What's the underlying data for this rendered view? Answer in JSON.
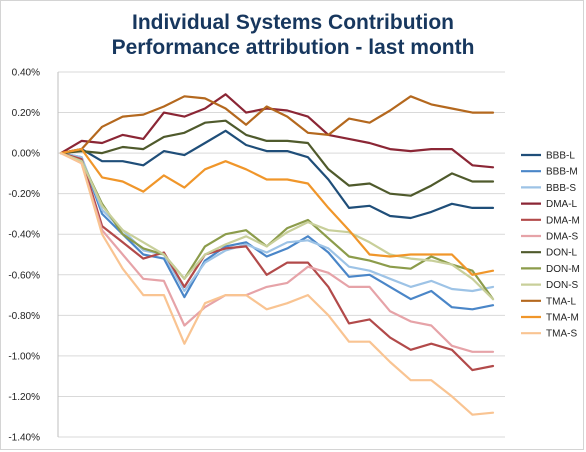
{
  "chart_data": {
    "type": "line",
    "title": "Individual Systems Contribution",
    "subtitle": "Performance attribution - last month",
    "xlabel": "",
    "ylabel": "",
    "ylim": [
      -1.4,
      0.4
    ],
    "yticks": [
      "0.40%",
      "0.20%",
      "0.00%",
      "-0.20%",
      "-0.40%",
      "-0.60%",
      "-0.80%",
      "-1.00%",
      "-1.20%",
      "-1.40%"
    ],
    "ytick_values": [
      0.4,
      0.2,
      0.0,
      -0.2,
      -0.4,
      -0.6,
      -0.8,
      -1.0,
      -1.2,
      -1.4
    ],
    "grid": "horizontal",
    "legend_position": "right",
    "series": [
      {
        "name": "BBB-L",
        "color": "#1f4e79",
        "values": [
          0.0,
          0.02,
          -0.04,
          -0.04,
          -0.06,
          0.01,
          -0.01,
          0.05,
          0.11,
          0.04,
          0.01,
          0.01,
          -0.02,
          -0.13,
          -0.27,
          -0.26,
          -0.31,
          -0.32,
          -0.29,
          -0.25,
          -0.27,
          -0.27
        ]
      },
      {
        "name": "BBB-M",
        "color": "#4a86c8",
        "values": [
          0.0,
          -0.02,
          -0.3,
          -0.4,
          -0.5,
          -0.52,
          -0.71,
          -0.53,
          -0.46,
          -0.44,
          -0.51,
          -0.47,
          -0.41,
          -0.49,
          -0.61,
          -0.6,
          -0.66,
          -0.72,
          -0.68,
          -0.76,
          -0.77,
          -0.75
        ]
      },
      {
        "name": "BBB-S",
        "color": "#9dc3e6",
        "values": [
          0.0,
          -0.02,
          -0.28,
          -0.38,
          -0.48,
          -0.5,
          -0.68,
          -0.54,
          -0.48,
          -0.45,
          -0.49,
          -0.44,
          -0.43,
          -0.47,
          -0.56,
          -0.58,
          -0.62,
          -0.66,
          -0.63,
          -0.67,
          -0.68,
          -0.66
        ]
      },
      {
        "name": "DMA-L",
        "color": "#8b2635",
        "values": [
          0.0,
          0.06,
          0.05,
          0.09,
          0.07,
          0.2,
          0.18,
          0.22,
          0.29,
          0.2,
          0.22,
          0.21,
          0.18,
          0.09,
          0.07,
          0.05,
          0.02,
          0.01,
          0.02,
          0.02,
          -0.06,
          -0.07
        ]
      },
      {
        "name": "DMA-M",
        "color": "#b24a4a",
        "values": [
          0.0,
          -0.03,
          -0.36,
          -0.44,
          -0.52,
          -0.49,
          -0.66,
          -0.5,
          -0.47,
          -0.46,
          -0.6,
          -0.54,
          -0.54,
          -0.66,
          -0.84,
          -0.82,
          -0.91,
          -0.97,
          -0.94,
          -0.97,
          -1.07,
          -1.05
        ]
      },
      {
        "name": "DMA-S",
        "color": "#e6a3a8",
        "values": [
          0.0,
          -0.05,
          -0.38,
          -0.5,
          -0.62,
          -0.63,
          -0.85,
          -0.76,
          -0.7,
          -0.7,
          -0.66,
          -0.64,
          -0.56,
          -0.59,
          -0.66,
          -0.66,
          -0.78,
          -0.83,
          -0.85,
          -0.95,
          -0.98,
          -0.98
        ]
      },
      {
        "name": "DON-L",
        "color": "#4f5a2c",
        "values": [
          0.0,
          0.01,
          0.0,
          0.03,
          0.02,
          0.08,
          0.1,
          0.15,
          0.16,
          0.09,
          0.06,
          0.06,
          0.05,
          -0.08,
          -0.16,
          -0.15,
          -0.2,
          -0.21,
          -0.16,
          -0.1,
          -0.14,
          -0.14
        ]
      },
      {
        "name": "DON-M",
        "color": "#8c9c4b",
        "values": [
          0.0,
          -0.04,
          -0.25,
          -0.4,
          -0.47,
          -0.5,
          -0.62,
          -0.46,
          -0.4,
          -0.38,
          -0.46,
          -0.37,
          -0.33,
          -0.42,
          -0.51,
          -0.53,
          -0.56,
          -0.57,
          -0.51,
          -0.55,
          -0.58,
          -0.72
        ]
      },
      {
        "name": "DON-S",
        "color": "#c8cf9a",
        "values": [
          0.0,
          -0.04,
          -0.26,
          -0.38,
          -0.44,
          -0.5,
          -0.62,
          -0.5,
          -0.45,
          -0.41,
          -0.46,
          -0.39,
          -0.34,
          -0.38,
          -0.39,
          -0.44,
          -0.5,
          -0.52,
          -0.53,
          -0.55,
          -0.62,
          -0.72
        ]
      },
      {
        "name": "TMA-L",
        "color": "#b4681e",
        "values": [
          0.0,
          0.02,
          0.13,
          0.18,
          0.19,
          0.23,
          0.28,
          0.27,
          0.22,
          0.14,
          0.23,
          0.18,
          0.1,
          0.09,
          0.17,
          0.15,
          0.21,
          0.28,
          0.24,
          0.22,
          0.2,
          0.2
        ]
      },
      {
        "name": "TMA-M",
        "color": "#f0962a",
        "values": [
          0.0,
          0.02,
          -0.12,
          -0.14,
          -0.19,
          -0.11,
          -0.17,
          -0.08,
          -0.04,
          -0.08,
          -0.13,
          -0.13,
          -0.15,
          -0.27,
          -0.38,
          -0.5,
          -0.51,
          -0.5,
          -0.5,
          -0.5,
          -0.6,
          -0.58
        ]
      },
      {
        "name": "TMA-S",
        "color": "#f9c492",
        "values": [
          0.0,
          -0.05,
          -0.4,
          -0.57,
          -0.7,
          -0.7,
          -0.94,
          -0.74,
          -0.7,
          -0.7,
          -0.77,
          -0.74,
          -0.7,
          -0.8,
          -0.93,
          -0.93,
          -1.03,
          -1.12,
          -1.12,
          -1.2,
          -1.29,
          -1.28
        ]
      }
    ]
  }
}
